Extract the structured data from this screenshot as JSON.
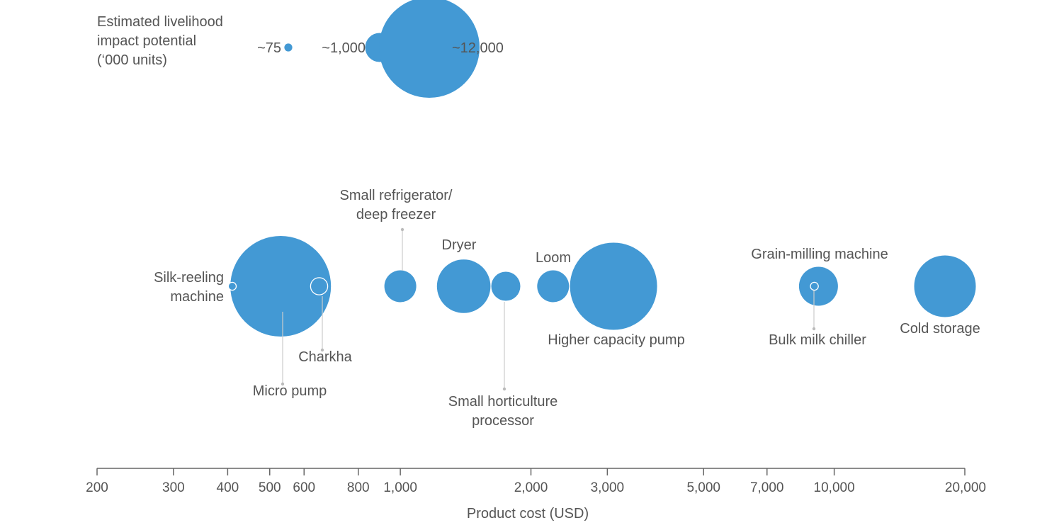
{
  "chart_data": {
    "type": "scatter",
    "title": "",
    "xlabel": "Product cost (USD)",
    "ylabel": "",
    "x_scale": "log",
    "xlim": [
      200,
      20000
    ],
    "x_ticks": [
      200,
      300,
      400,
      500,
      600,
      800,
      1000,
      2000,
      3000,
      5000,
      7000,
      10000,
      20000
    ],
    "x_tick_labels": [
      "200",
      "300",
      "400",
      "500",
      "600",
      "800",
      "1,000",
      "2,000",
      "3,000",
      "5,000",
      "7,000",
      "10,000",
      "20,000"
    ],
    "size_legend": {
      "title_lines": [
        "Estimated livelihood",
        "impact potential",
        "(‘000 units)"
      ],
      "entries": [
        {
          "label": "~75",
          "value": 75
        },
        {
          "label": "~1,000",
          "value": 1000
        },
        {
          "label": "~12,000",
          "value": 12000
        }
      ]
    },
    "color": "#4399d4",
    "points": [
      {
        "name": "Micro pump",
        "label_lines": [
          "Micro pump"
        ],
        "x": 530,
        "size": 12000
      },
      {
        "name": "Silk-reeling machine",
        "label_lines": [
          "Silk-reeling",
          "machine"
        ],
        "x": 410,
        "size": 75
      },
      {
        "name": "Charkha",
        "label_lines": [
          "Charkha"
        ],
        "x": 650,
        "size": 350
      },
      {
        "name": "Small refrigerator/deep freezer",
        "label_lines": [
          "Small refrigerator/",
          "deep freezer"
        ],
        "x": 1000,
        "size": 1200
      },
      {
        "name": "Dryer",
        "label_lines": [
          "Dryer"
        ],
        "x": 1400,
        "size": 3400
      },
      {
        "name": "Small horticulture processor",
        "label_lines": [
          "Small horticulture",
          "processor"
        ],
        "x": 1750,
        "size": 1000
      },
      {
        "name": "Loom",
        "label_lines": [
          "Loom"
        ],
        "x": 2250,
        "size": 1200
      },
      {
        "name": "Higher capacity pump",
        "label_lines": [
          "Higher capacity pump"
        ],
        "x": 3100,
        "size": 9000
      },
      {
        "name": "Grain-milling machine",
        "label_lines": [
          "Grain-milling machine"
        ],
        "x": 9200,
        "size": 1800
      },
      {
        "name": "Bulk milk chiller",
        "label_lines": [
          "Bulk milk chiller"
        ],
        "x": 9000,
        "size": 75
      },
      {
        "name": "Cold storage",
        "label_lines": [
          "Cold storage"
        ],
        "x": 18000,
        "size": 4500
      }
    ]
  }
}
